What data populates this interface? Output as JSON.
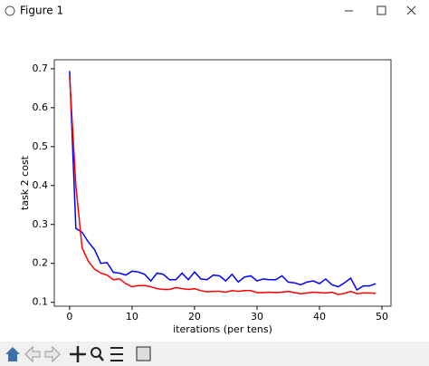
{
  "window": {
    "title": "Figure 1"
  },
  "chart_data": {
    "type": "line",
    "x_label": "iterations (per tens)",
    "y_label": "task 2 cost",
    "x": [
      0,
      1,
      2,
      3,
      4,
      5,
      6,
      7,
      8,
      9,
      10,
      11,
      12,
      13,
      14,
      15,
      16,
      17,
      18,
      19,
      20,
      21,
      22,
      23,
      24,
      25,
      26,
      27,
      28,
      29,
      30,
      31,
      32,
      33,
      34,
      35,
      36,
      37,
      38,
      39,
      40,
      41,
      42,
      43,
      44,
      45,
      46,
      47,
      48,
      49
    ],
    "series": [
      {
        "color": "#0000ff",
        "values": [
          0.694,
          0.29,
          0.28,
          0.255,
          0.235,
          0.2,
          0.202,
          0.177,
          0.175,
          0.17,
          0.18,
          0.178,
          0.172,
          0.155,
          0.175,
          0.172,
          0.158,
          0.158,
          0.175,
          0.158,
          0.178,
          0.16,
          0.158,
          0.17,
          0.168,
          0.155,
          0.172,
          0.152,
          0.165,
          0.168,
          0.155,
          0.16,
          0.158,
          0.158,
          0.168,
          0.152,
          0.15,
          0.145,
          0.152,
          0.155,
          0.148,
          0.16,
          0.145,
          0.14,
          0.15,
          0.162,
          0.132,
          0.142,
          0.142,
          0.148
        ]
      },
      {
        "color": "#ff0000",
        "values": [
          0.68,
          0.4,
          0.24,
          0.205,
          0.185,
          0.175,
          0.17,
          0.158,
          0.16,
          0.148,
          0.14,
          0.143,
          0.143,
          0.14,
          0.135,
          0.133,
          0.133,
          0.138,
          0.135,
          0.133,
          0.135,
          0.13,
          0.127,
          0.128,
          0.128,
          0.126,
          0.13,
          0.128,
          0.13,
          0.13,
          0.125,
          0.125,
          0.126,
          0.125,
          0.126,
          0.128,
          0.125,
          0.122,
          0.124,
          0.126,
          0.125,
          0.124,
          0.126,
          0.12,
          0.123,
          0.128,
          0.122,
          0.124,
          0.124,
          0.123
        ]
      }
    ],
    "xlim": [
      -2.45,
      51.45
    ],
    "xticks": [
      0,
      10,
      20,
      30,
      40,
      50
    ],
    "ylim": [
      0.09,
      0.723
    ],
    "yticks": [
      0.1,
      0.2,
      0.3,
      0.4,
      0.5,
      0.6,
      0.7
    ],
    "grid": false
  }
}
